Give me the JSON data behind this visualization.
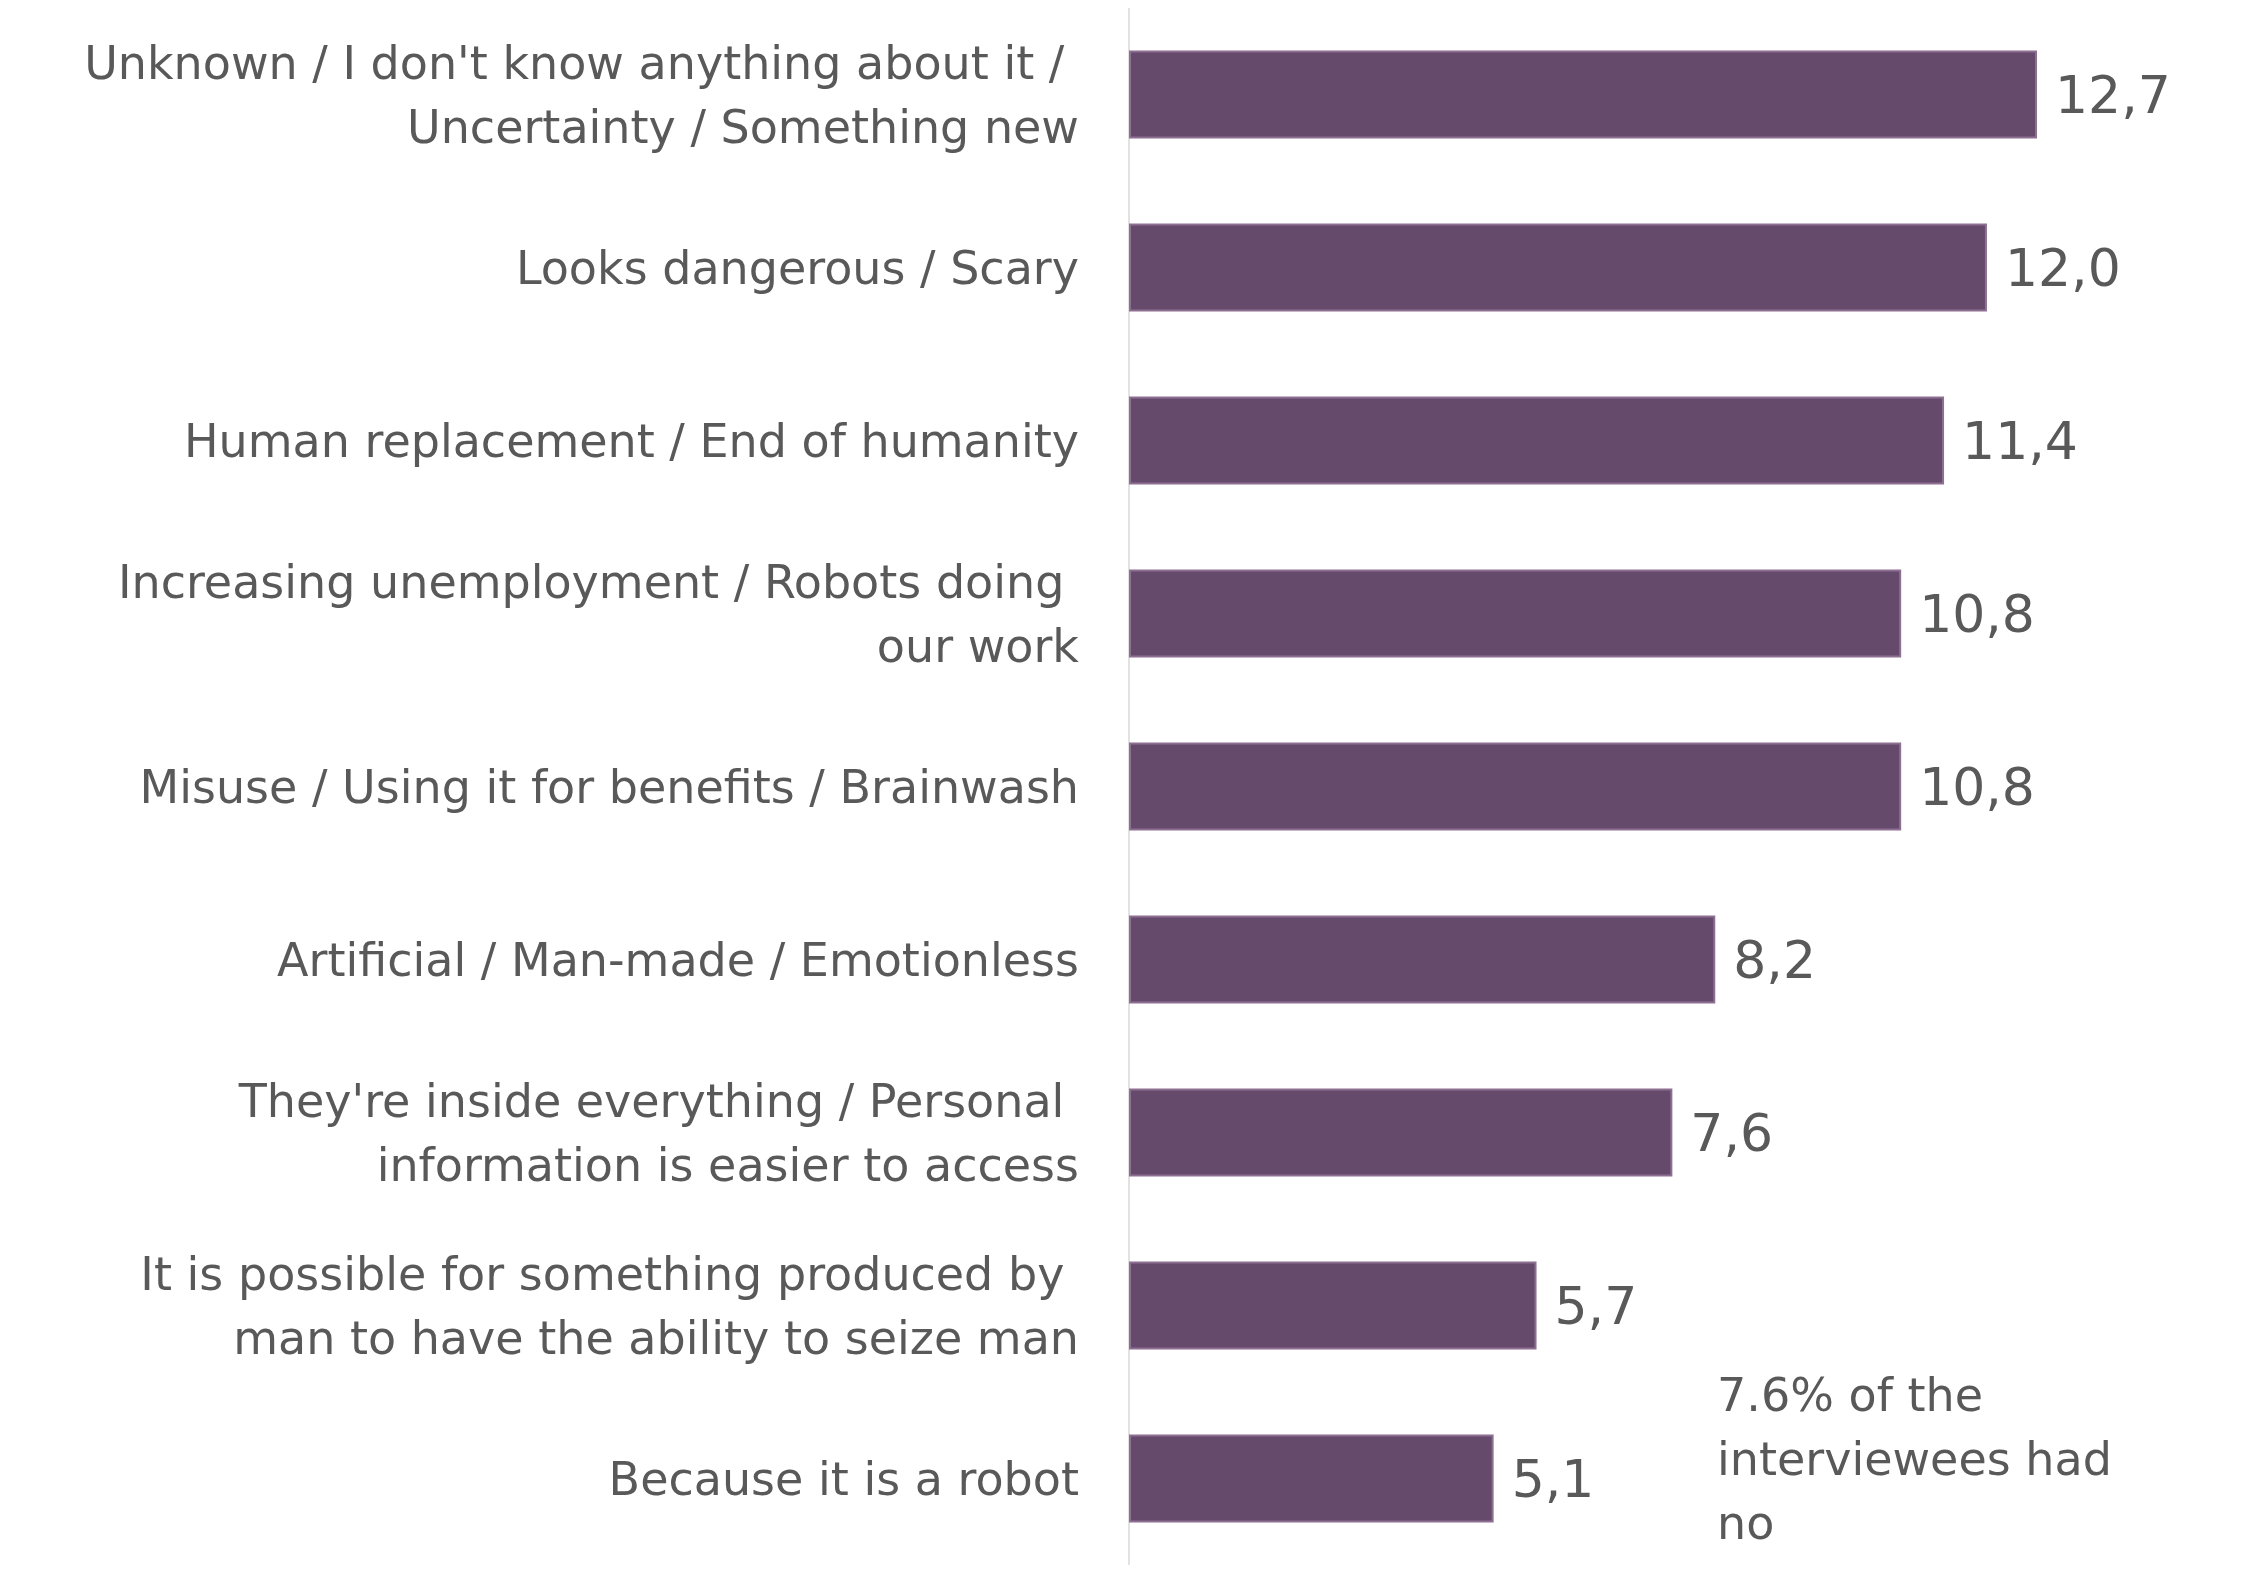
{
  "chart_data": {
    "type": "bar",
    "orientation": "horizontal",
    "categories": [
      "Unknown / I don't know anything about it / Uncertainty / Something new",
      "Looks dangerous / Scary",
      "Human replacement / End of humanity",
      "Increasing unemployment / Robots doing our work",
      "Misuse / Using it for benefits / Brainwash",
      "Artificial / Man-made / Emotionless",
      "They're inside everything / Personal information is easier to access",
      "It is possible for something produced by man to have the ability to seize man",
      "Because it is a robot"
    ],
    "values": [
      12.7,
      12.0,
      11.4,
      10.8,
      10.8,
      8.2,
      7.6,
      5.7,
      5.1
    ],
    "value_labels": [
      "12,7",
      "12,0",
      "11,4",
      "10,8",
      "10,8",
      "8,2",
      "7,6",
      "5,7",
      "5,1"
    ],
    "color": "#654a6c",
    "annotations": [
      "7.6% of the interviewees had no"
    ]
  }
}
